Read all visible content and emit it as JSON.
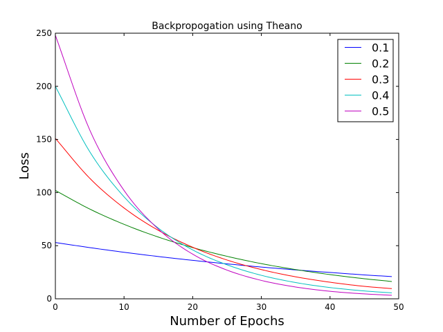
{
  "chart_data": {
    "type": "line",
    "title": "Backpropogation using Theano",
    "xlabel": "Number of Epochs",
    "ylabel": "Loss",
    "xlim": [
      0,
      50
    ],
    "ylim": [
      0,
      250
    ],
    "xticks": [
      0,
      10,
      20,
      30,
      40,
      50
    ],
    "yticks": [
      0,
      50,
      100,
      150,
      200,
      250
    ],
    "xtick_labels": [
      "0",
      "10",
      "20",
      "30",
      "40",
      "50"
    ],
    "ytick_labels": [
      "0",
      "50",
      "100",
      "150",
      "200",
      "250"
    ],
    "grid": false,
    "legend_position": "top-right",
    "x": [
      0,
      5,
      10,
      15,
      20,
      25,
      30,
      35,
      40,
      45,
      49
    ],
    "series": [
      {
        "name": "0.1",
        "color": "#0000ff",
        "values": [
          53,
          48.2,
          43.8,
          39.8,
          36.2,
          32.9,
          29.9,
          27.2,
          24.8,
          22.5,
          20.9
        ]
      },
      {
        "name": "0.2",
        "color": "#008000",
        "values": [
          102,
          84.5,
          70.1,
          58.1,
          48.2,
          40,
          33.1,
          27.5,
          22.8,
          18.9,
          16.3
        ]
      },
      {
        "name": "0.3",
        "color": "#ff0000",
        "values": [
          151,
          113.5,
          85.5,
          64.4,
          48.5,
          36.5,
          27.5,
          20.7,
          15.6,
          11.7,
          9.6
        ]
      },
      {
        "name": "0.4",
        "color": "#00bfbf",
        "values": [
          200,
          138.5,
          96,
          66.5,
          46,
          32,
          22.1,
          15.3,
          10.6,
          7.4,
          5.6
        ]
      },
      {
        "name": "0.5",
        "color": "#bf00bf",
        "values": [
          248,
          159,
          102,
          65.6,
          42,
          27,
          17.3,
          11.1,
          7.1,
          4.6,
          3.3
        ]
      }
    ]
  }
}
